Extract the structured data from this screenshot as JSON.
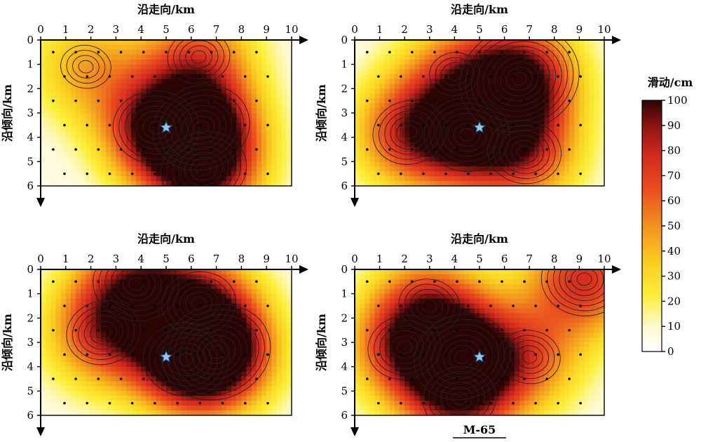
{
  "chart_data": [
    {
      "type": "heatmap",
      "panel": "top-left",
      "xlabel": "沿走向/km",
      "ylabel": "沿倾向/km",
      "xlim": [
        0,
        10
      ],
      "ylim": [
        0,
        6
      ],
      "xticks": [
        "0",
        "1",
        "2",
        "3",
        "4",
        "5",
        "6",
        "7",
        "8",
        "9",
        "10"
      ],
      "yticks": [
        "0",
        "1",
        "2",
        "3",
        "4",
        "5",
        "6"
      ],
      "hypocenter": {
        "x": 5.0,
        "y": 3.6
      },
      "peaks": [
        {
          "x": 6.4,
          "y": 3.6,
          "slip": 75
        },
        {
          "x": 4.6,
          "y": 3.6,
          "slip": 70
        },
        {
          "x": 6.5,
          "y": 5.3,
          "slip": 72
        },
        {
          "x": 1.8,
          "y": 1.1,
          "slip": 38
        },
        {
          "x": 6.3,
          "y": 0.7,
          "slip": 50
        }
      ]
    },
    {
      "type": "heatmap",
      "panel": "top-right",
      "xlabel": "沿走向/km",
      "ylabel": "沿倾向/km",
      "xlim": [
        0,
        10
      ],
      "ylim": [
        0,
        6
      ],
      "xticks": [
        "0",
        "1",
        "2",
        "3",
        "4",
        "5",
        "6",
        "7",
        "8",
        "9",
        "10"
      ],
      "yticks": [
        "0",
        "1",
        "2",
        "3",
        "4",
        "5",
        "6"
      ],
      "hypocenter": {
        "x": 5.0,
        "y": 3.6
      },
      "peaks": [
        {
          "x": 6.6,
          "y": 1.6,
          "slip": 95
        },
        {
          "x": 4.5,
          "y": 3.9,
          "slip": 72
        },
        {
          "x": 2.2,
          "y": 3.8,
          "slip": 62
        },
        {
          "x": 6.8,
          "y": 4.6,
          "slip": 58
        },
        {
          "x": 4.0,
          "y": 1.4,
          "slip": 40
        }
      ]
    },
    {
      "type": "heatmap",
      "panel": "bottom-left",
      "xlabel": "沿走向/km",
      "ylabel": "沿倾向/km",
      "xlim": [
        0,
        10
      ],
      "ylim": [
        0,
        6
      ],
      "xticks": [
        "0",
        "1",
        "2",
        "3",
        "4",
        "5",
        "6",
        "7",
        "8",
        "9",
        "10"
      ],
      "yticks": [
        "0",
        "1",
        "2",
        "3",
        "4",
        "5",
        "6"
      ],
      "hypocenter": {
        "x": 5.0,
        "y": 3.6
      },
      "peaks": [
        {
          "x": 7.0,
          "y": 3.4,
          "slip": 92
        },
        {
          "x": 5.8,
          "y": 3.7,
          "slip": 70
        },
        {
          "x": 2.5,
          "y": 2.6,
          "slip": 62
        },
        {
          "x": 3.8,
          "y": 0.6,
          "slip": 65
        },
        {
          "x": 6.3,
          "y": 1.4,
          "slip": 55
        }
      ]
    },
    {
      "type": "heatmap",
      "panel": "bottom-right",
      "xlabel": "沿走向/km",
      "ylabel": "沿倾向/km",
      "xlim": [
        0,
        10
      ],
      "ylim": [
        0,
        6
      ],
      "xticks": [
        "0",
        "1",
        "2",
        "3",
        "4",
        "5",
        "6",
        "7",
        "8",
        "9",
        "10"
      ],
      "yticks": [
        "0",
        "1",
        "2",
        "3",
        "4",
        "5",
        "6"
      ],
      "hypocenter": {
        "x": 5.0,
        "y": 3.6
      },
      "peaks": [
        {
          "x": 4.3,
          "y": 3.6,
          "slip": 82
        },
        {
          "x": 9.2,
          "y": 0.4,
          "slip": 70
        },
        {
          "x": 2.0,
          "y": 3.2,
          "slip": 58
        },
        {
          "x": 7.0,
          "y": 3.6,
          "slip": 45
        },
        {
          "x": 4.2,
          "y": 5.3,
          "slip": 55
        },
        {
          "x": 3.0,
          "y": 1.5,
          "slip": 50
        }
      ]
    }
  ],
  "colorbar": {
    "title": "滑动/cm",
    "ticks": [
      "0",
      "10",
      "20",
      "30",
      "40",
      "50",
      "60",
      "70",
      "80",
      "90",
      "100"
    ],
    "min": 0,
    "max": 100
  },
  "model_label": "M-65"
}
